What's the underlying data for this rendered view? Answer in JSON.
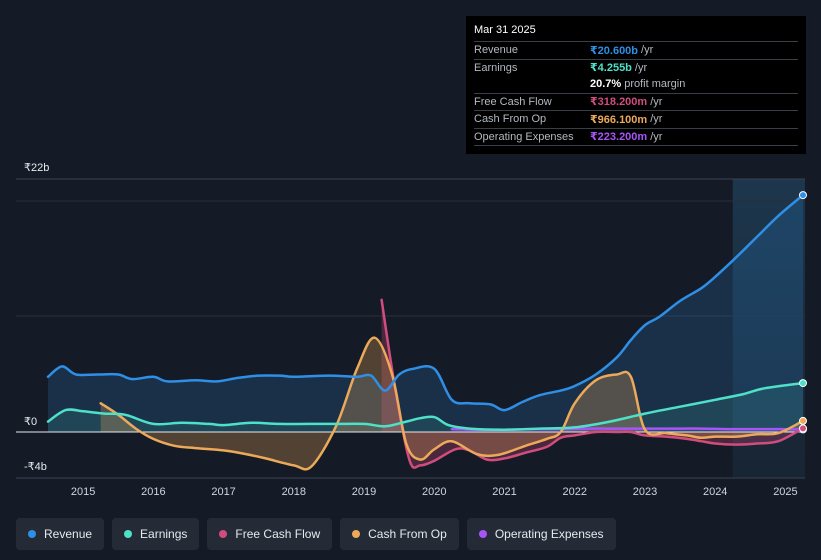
{
  "chart_data": {
    "type": "line",
    "ylim": [
      -4,
      22
    ],
    "xlim": [
      2014.5,
      2025.25
    ],
    "y_labels": [
      {
        "text": "₹22b",
        "value": 22
      },
      {
        "text": "₹0",
        "value": 0
      },
      {
        "text": "-₹4b",
        "value": -4
      }
    ],
    "x_ticks": [
      "2015",
      "2016",
      "2017",
      "2018",
      "2019",
      "2020",
      "2021",
      "2022",
      "2023",
      "2024",
      "2025"
    ],
    "x_tick_values": [
      2015,
      2016,
      2017,
      2018,
      2019,
      2020,
      2021,
      2022,
      2023,
      2024,
      2025
    ],
    "forecast_start": 2024.25,
    "series": [
      {
        "name": "Revenue",
        "color": "#2f8fe6",
        "area": true,
        "x": [
          2014.5,
          2014.7,
          2014.9,
          2015.2,
          2015.5,
          2015.7,
          2016.0,
          2016.2,
          2016.6,
          2016.9,
          2017.2,
          2017.5,
          2017.8,
          2018.0,
          2018.5,
          2018.9,
          2019.1,
          2019.3,
          2019.5,
          2019.7,
          2020.0,
          2020.25,
          2020.5,
          2020.8,
          2021.0,
          2021.25,
          2021.5,
          2021.8,
          2022.0,
          2022.3,
          2022.6,
          2022.8,
          2023.0,
          2023.2,
          2023.5,
          2023.8,
          2024.0,
          2024.3,
          2024.6,
          2024.9,
          2025.25
        ],
        "y": [
          4.8,
          5.7,
          5.0,
          5.0,
          5.0,
          4.6,
          4.8,
          4.4,
          4.5,
          4.4,
          4.7,
          4.9,
          4.9,
          4.8,
          4.9,
          4.8,
          4.9,
          3.6,
          5.0,
          5.5,
          5.5,
          2.8,
          2.5,
          2.4,
          1.9,
          2.6,
          3.2,
          3.6,
          4.0,
          5.0,
          6.5,
          8.0,
          9.3,
          10.0,
          11.4,
          12.5,
          13.5,
          15.2,
          17.0,
          18.8,
          20.6
        ]
      },
      {
        "name": "Earnings",
        "color": "#4fe0c8",
        "area": true,
        "x": [
          2014.5,
          2014.75,
          2015.0,
          2015.3,
          2015.6,
          2016.0,
          2016.4,
          2016.8,
          2017.0,
          2017.4,
          2017.8,
          2018.2,
          2018.6,
          2019.0,
          2019.3,
          2019.6,
          2019.8,
          2020.0,
          2020.2,
          2020.5,
          2021.0,
          2021.5,
          2022.0,
          2022.5,
          2023.0,
          2023.5,
          2024.0,
          2024.4,
          2024.7,
          2025.25
        ],
        "y": [
          0.9,
          1.9,
          1.8,
          1.6,
          1.5,
          0.7,
          0.8,
          0.7,
          0.6,
          0.8,
          0.7,
          0.7,
          0.7,
          0.7,
          0.5,
          0.9,
          1.2,
          1.3,
          0.6,
          0.3,
          0.2,
          0.3,
          0.4,
          0.9,
          1.6,
          2.2,
          2.8,
          3.3,
          3.8,
          4.255
        ]
      },
      {
        "name": "Free Cash Flow",
        "color": "#d14d7d",
        "area": true,
        "x": [
          2019.25,
          2019.45,
          2019.65,
          2019.8,
          2020.0,
          2020.3,
          2020.5,
          2020.75,
          2021.0,
          2021.3,
          2021.6,
          2021.8,
          2022.0,
          2022.3,
          2022.6,
          2022.8,
          2023.0,
          2023.3,
          2023.6,
          2023.8,
          2024.0,
          2024.3,
          2024.6,
          2024.9,
          2025.25
        ],
        "y": [
          11.5,
          3.5,
          -2.5,
          -2.9,
          -2.5,
          -1.5,
          -1.6,
          -2.4,
          -2.3,
          -1.8,
          -1.3,
          -0.5,
          -0.3,
          0.0,
          0.0,
          0.0,
          -0.3,
          -0.4,
          -0.6,
          -0.8,
          -1.0,
          -1.1,
          -1.0,
          -0.8,
          0.318
        ]
      },
      {
        "name": "Cash From Op",
        "color": "#eda95a",
        "area": true,
        "x": [
          2015.25,
          2015.5,
          2015.75,
          2016.0,
          2016.3,
          2016.6,
          2017.0,
          2017.3,
          2017.6,
          2018.0,
          2018.25,
          2018.6,
          2018.9,
          2019.15,
          2019.4,
          2019.6,
          2019.8,
          2020.0,
          2020.25,
          2020.6,
          2020.9,
          2021.3,
          2021.6,
          2021.8,
          2022.0,
          2022.3,
          2022.6,
          2022.8,
          2023.0,
          2023.3,
          2023.6,
          2023.8,
          2024.0,
          2024.3,
          2024.6,
          2024.9,
          2025.25
        ],
        "y": [
          2.5,
          1.5,
          0.3,
          -0.6,
          -1.2,
          -1.4,
          -1.6,
          -1.9,
          -2.3,
          -2.9,
          -3.0,
          0.5,
          5.5,
          8.2,
          5.0,
          -1.0,
          -2.4,
          -1.5,
          -0.8,
          -1.9,
          -2.0,
          -1.2,
          -0.6,
          0.0,
          2.5,
          4.5,
          5.0,
          4.8,
          0.2,
          -0.1,
          -0.3,
          -0.5,
          -0.4,
          -0.4,
          -0.2,
          -0.1,
          0.966
        ]
      },
      {
        "name": "Operating Expenses",
        "color": "#a855f7",
        "area": true,
        "x": [
          2020.25,
          2020.6,
          2021.0,
          2021.4,
          2021.8,
          2022.2,
          2022.6,
          2023.0,
          2023.4,
          2023.8,
          2024.2,
          2024.6,
          2024.9,
          2025.25
        ],
        "y": [
          0.25,
          0.2,
          0.2,
          0.25,
          0.25,
          0.3,
          0.3,
          0.3,
          0.3,
          0.3,
          0.25,
          0.25,
          0.25,
          0.223
        ]
      }
    ]
  },
  "tooltip": {
    "date": "Mar 31 2025",
    "rows": [
      {
        "label": "Revenue",
        "value": "₹20.600b",
        "unit": "/yr",
        "color": "#2f8fe6"
      },
      {
        "label": "Earnings",
        "value": "₹4.255b",
        "unit": "/yr",
        "color": "#4fe0c8"
      },
      {
        "label": "",
        "value": "20.7%",
        "unit": "profit margin",
        "color": "#ffffff"
      },
      {
        "label": "Free Cash Flow",
        "value": "₹318.200m",
        "unit": "/yr",
        "color": "#d14d7d"
      },
      {
        "label": "Cash From Op",
        "value": "₹966.100m",
        "unit": "/yr",
        "color": "#eda95a"
      },
      {
        "label": "Operating Expenses",
        "value": "₹223.200m",
        "unit": "/yr",
        "color": "#a855f7"
      }
    ]
  },
  "legend": [
    {
      "label": "Revenue",
      "color": "#2f8fe6"
    },
    {
      "label": "Earnings",
      "color": "#4fe0c8"
    },
    {
      "label": "Free Cash Flow",
      "color": "#d14d7d"
    },
    {
      "label": "Cash From Op",
      "color": "#eda95a"
    },
    {
      "label": "Operating Expenses",
      "color": "#a855f7"
    }
  ]
}
